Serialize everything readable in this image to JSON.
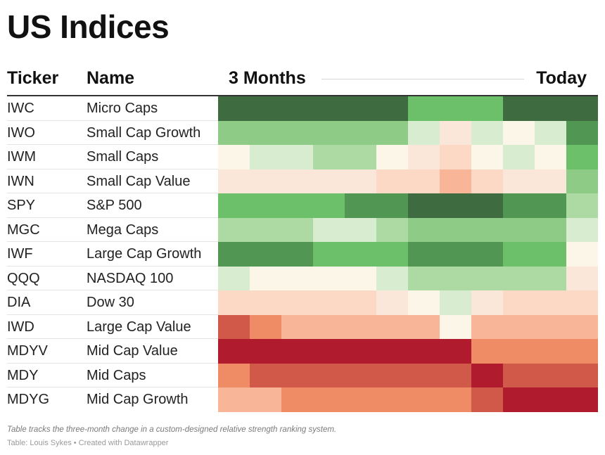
{
  "title": "US Indices",
  "headers": {
    "ticker": "Ticker",
    "name": "Name",
    "start": "3 Months",
    "end": "Today"
  },
  "note": "Table tracks the three-month change in a custom-designed relative strength ranking system.",
  "source": "Table: Louis Sykes • Created with Datawrapper",
  "palette": {
    "-5": "#b01c2e",
    "-4": "#d0594a",
    "-3": "#ef8b65",
    "-2": "#f8b597",
    "-1": "#fbd9c5",
    "-0.5": "#fbe7da",
    "0": "#fbf6e8",
    "0.5": "#d8eccf",
    "1": "#add9a3",
    "2": "#8dcb87",
    "3": "#6cc06a",
    "4": "#519753",
    "5": "#3e6b3f"
  },
  "chart_data": {
    "type": "heatmap",
    "x": [
      "3 Months",
      "",
      "",
      "",
      "",
      "",
      "",
      "",
      "",
      "",
      "",
      "Today"
    ],
    "rows": [
      {
        "ticker": "IWC",
        "name": "Micro Caps",
        "values": [
          5,
          5,
          5,
          5,
          5,
          5,
          3,
          3,
          3,
          5,
          5,
          5
        ]
      },
      {
        "ticker": "IWO",
        "name": "Small Cap Growth",
        "values": [
          2,
          2,
          2,
          2,
          2,
          2,
          0.5,
          -0.5,
          0.5,
          0,
          0.5,
          4
        ]
      },
      {
        "ticker": "IWM",
        "name": "Small Caps",
        "values": [
          0,
          0.5,
          0.5,
          1,
          1,
          0,
          -0.5,
          -1,
          0,
          0.5,
          0,
          3
        ]
      },
      {
        "ticker": "IWN",
        "name": "Small Cap Value",
        "values": [
          -0.5,
          -0.5,
          -0.5,
          -0.5,
          -0.5,
          -1,
          -1,
          -2,
          -1,
          -0.5,
          -0.5,
          2
        ]
      },
      {
        "ticker": "SPY",
        "name": "S&P 500",
        "values": [
          3,
          3,
          3,
          3,
          4,
          4,
          5,
          5,
          5,
          4,
          4,
          1
        ]
      },
      {
        "ticker": "MGC",
        "name": "Mega Caps",
        "values": [
          1,
          1,
          1,
          0.5,
          0.5,
          1,
          2,
          2,
          2,
          2,
          2,
          0.5
        ]
      },
      {
        "ticker": "IWF",
        "name": "Large Cap Growth",
        "values": [
          4,
          4,
          4,
          3,
          3,
          3,
          4,
          4,
          4,
          3,
          3,
          0
        ]
      },
      {
        "ticker": "QQQ",
        "name": "NASDAQ 100",
        "values": [
          0.5,
          0,
          0,
          0,
          0,
          0.5,
          1,
          1,
          1,
          1,
          1,
          -0.5
        ]
      },
      {
        "ticker": "DIA",
        "name": "Dow 30",
        "values": [
          -1,
          -1,
          -1,
          -1,
          -1,
          -0.5,
          0,
          0.5,
          -0.5,
          -1,
          -1,
          -1
        ]
      },
      {
        "ticker": "IWD",
        "name": "Large Cap Value",
        "values": [
          -4,
          -3,
          -2,
          -2,
          -2,
          -2,
          -2,
          0,
          -2,
          -2,
          -2,
          -2
        ]
      },
      {
        "ticker": "MDYV",
        "name": "Mid Cap Value",
        "values": [
          -5,
          -5,
          -5,
          -5,
          -5,
          -5,
          -5,
          -5,
          -3,
          -3,
          -3,
          -3
        ]
      },
      {
        "ticker": "MDY",
        "name": "Mid Caps",
        "values": [
          -3,
          -4,
          -4,
          -4,
          -4,
          -4,
          -4,
          -4,
          -5,
          -4,
          -4,
          -4
        ]
      },
      {
        "ticker": "MDYG",
        "name": "Mid Cap Growth",
        "values": [
          -2,
          -2,
          -3,
          -3,
          -3,
          -3,
          -3,
          -3,
          -4,
          -5,
          -5,
          -5
        ]
      }
    ]
  }
}
